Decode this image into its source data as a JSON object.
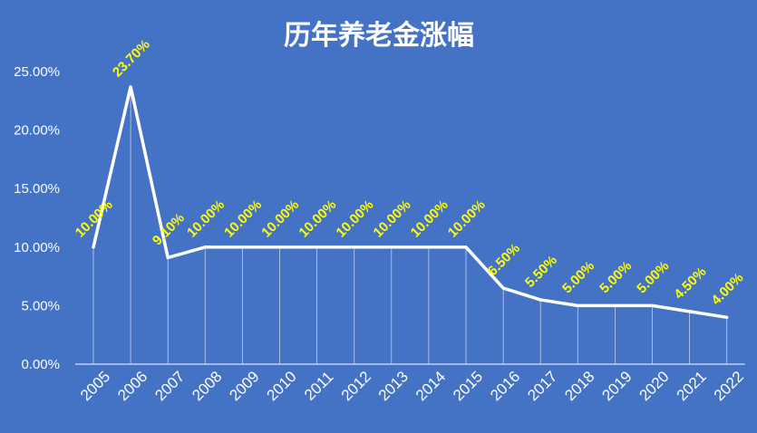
{
  "colors": {
    "background": "#4472C4",
    "line": "#FFFFFF",
    "label": "#FFFF00",
    "axis": "#FFFFFF",
    "drop_line": "#D9E2F3"
  },
  "chart_data": {
    "type": "line",
    "title": "历年养老金涨幅",
    "xlabel": "",
    "ylabel": "",
    "categories": [
      "2005",
      "2006",
      "2007",
      "2008",
      "2009",
      "2010",
      "2011",
      "2012",
      "2013",
      "2014",
      "2015",
      "2016",
      "2017",
      "2018",
      "2019",
      "2020",
      "2021",
      "2022"
    ],
    "values": [
      10.0,
      23.7,
      9.1,
      10.0,
      10.0,
      10.0,
      10.0,
      10.0,
      10.0,
      10.0,
      10.0,
      6.5,
      5.5,
      5.0,
      5.0,
      5.0,
      4.5,
      4.0
    ],
    "data_labels": [
      "10.00%",
      "23.70%",
      "9.10%",
      "10.00%",
      "10.00%",
      "10.00%",
      "10.00%",
      "10.00%",
      "10.00%",
      "10.00%",
      "10.00%",
      "6.50%",
      "5.50%",
      "5.00%",
      "5.00%",
      "5.00%",
      "4.50%",
      "4.00%"
    ],
    "yticks": [
      "0.00%",
      "5.00%",
      "10.00%",
      "15.00%",
      "20.00%",
      "25.00%"
    ],
    "ytick_values": [
      0,
      5,
      10,
      15,
      20,
      25
    ],
    "ylim": [
      0,
      25
    ],
    "grid": false,
    "drop_lines": true,
    "legend": "none"
  }
}
